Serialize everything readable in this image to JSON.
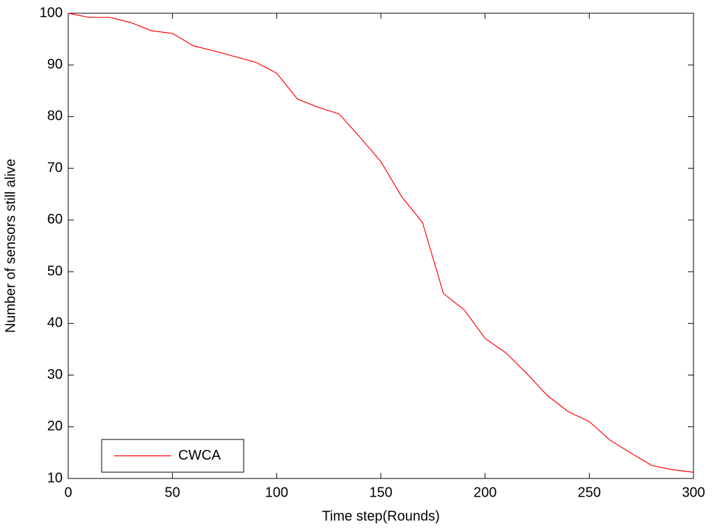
{
  "chart_data": {
    "type": "line",
    "x_label": "Time step(Rounds)",
    "y_label": "Number of sensors still alive",
    "x": [
      0,
      10,
      20,
      30,
      40,
      50,
      60,
      70,
      80,
      90,
      100,
      110,
      120,
      130,
      140,
      150,
      160,
      170,
      180,
      190,
      200,
      210,
      220,
      230,
      240,
      250,
      260,
      270,
      280,
      290,
      300
    ],
    "series": [
      {
        "name": "CWCA",
        "color": "#ff0000",
        "values": [
          100,
          99.2,
          99.2,
          98.2,
          96.6,
          96.1,
          93.7,
          92.7,
          91.6,
          90.5,
          88.4,
          83.4,
          81.8,
          80.5,
          76,
          71.3,
          64.5,
          59.5,
          45.8,
          42.6,
          37.1,
          34.3,
          30.3,
          26,
          22.9,
          21,
          17.4,
          14.9,
          12.5,
          11.7,
          11.2
        ]
      }
    ],
    "xlim": [
      0,
      300
    ],
    "xticks": [
      0,
      50,
      100,
      150,
      200,
      250,
      300
    ],
    "ylim": [
      10,
      100
    ],
    "yticks": [
      10,
      20,
      30,
      40,
      50,
      60,
      70,
      80,
      90,
      100
    ],
    "legend": "lower left"
  }
}
